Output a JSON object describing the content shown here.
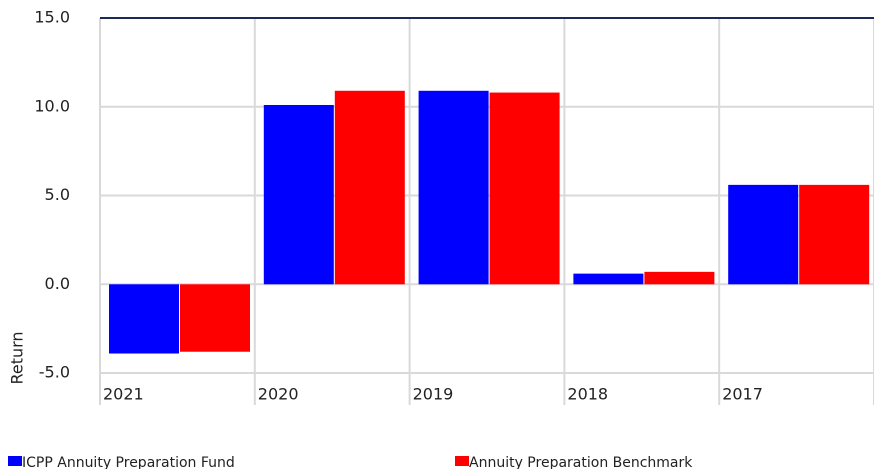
{
  "chart_data": {
    "type": "bar",
    "y_label": "Return",
    "categories": [
      "2021",
      "2020",
      "2019",
      "2018",
      "2017"
    ],
    "series": [
      {
        "name": "ICPP Annuity Preparation Fund",
        "color": "#0000ff",
        "values": [
          -3.9,
          10.1,
          10.9,
          0.6,
          5.6
        ]
      },
      {
        "name": "Annuity Preparation Benchmark",
        "color": "#ff0000",
        "values": [
          -3.8,
          10.9,
          10.8,
          0.7,
          5.6
        ]
      }
    ],
    "ylim": [
      -6.8,
      15
    ],
    "yticks": [
      {
        "value": -5,
        "label": "-5.0"
      },
      {
        "value": 0,
        "label": "0.0"
      },
      {
        "value": 5,
        "label": "5.0"
      },
      {
        "value": 10,
        "label": "10.0"
      },
      {
        "value": 15,
        "label": "15.0"
      }
    ],
    "grid": true
  }
}
